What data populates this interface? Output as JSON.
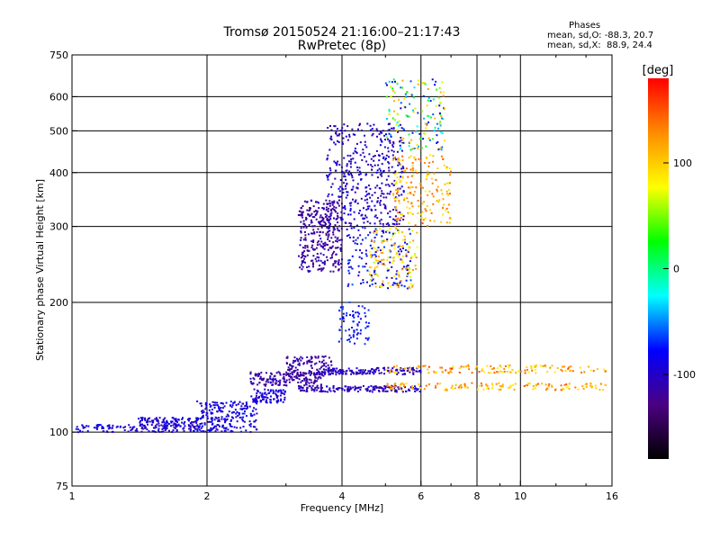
{
  "header": {
    "title_line1": "Tromsø 20150524 21:16:00–21:17:43",
    "title_line2": "RwPretec (8p)"
  },
  "stats": {
    "heading": "Phases",
    "line_o": "mean, sd,O: -88.3, 20.7",
    "line_x": "mean, sd,X:  88.9, 24.4"
  },
  "chart_data": {
    "type": "scatter",
    "xlabel": "Frequency [MHz]",
    "ylabel": "Stationary phase Virtual Height [km]",
    "xscale": "log",
    "yscale": "log",
    "xlim": [
      1,
      16
    ],
    "ylim": [
      75,
      750
    ],
    "xticks": [
      1,
      2,
      4,
      6,
      8,
      10,
      16
    ],
    "xtick_labels": [
      "1",
      "2",
      "4",
      "6",
      "8",
      "10",
      "16"
    ],
    "yticks": [
      75,
      100,
      200,
      300,
      400,
      500,
      600,
      750
    ],
    "ytick_labels": [
      "75",
      "100",
      "200",
      "300",
      "400",
      "500",
      "600",
      "750"
    ],
    "grid": true,
    "colorbar": {
      "label": "[deg]",
      "min": -180,
      "max": 180,
      "ticks": [
        100,
        0,
        -100
      ],
      "tick_labels": [
        "100",
        "0",
        "-100"
      ],
      "colors": [
        "#000000",
        "#4b0082",
        "#0000ff",
        "#00ffff",
        "#00ff00",
        "#ffff00",
        "#ff8c00",
        "#ff0000"
      ]
    },
    "trace_groups": [
      {
        "f_range": [
          1.02,
          1.4
        ],
        "h_range": [
          100,
          104
        ],
        "phase_range": [
          -110,
          -70
        ],
        "count": 60
      },
      {
        "f_range": [
          1.4,
          1.95
        ],
        "h_range": [
          100,
          108
        ],
        "phase_range": [
          -115,
          -75
        ],
        "count": 180
      },
      {
        "f_range": [
          1.9,
          2.6
        ],
        "h_range": [
          100,
          118
        ],
        "phase_range": [
          -110,
          -70
        ],
        "count": 220
      },
      {
        "f_range": [
          2.5,
          3.0
        ],
        "h_range": [
          117,
          126
        ],
        "phase_range": [
          -110,
          -80
        ],
        "count": 90
      },
      {
        "f_range": [
          2.5,
          3.6
        ],
        "h_range": [
          128,
          138
        ],
        "phase_range": [
          -130,
          -100
        ],
        "count": 160
      },
      {
        "f_range": [
          3.0,
          3.8
        ],
        "h_range": [
          135,
          150
        ],
        "phase_range": [
          -130,
          -100
        ],
        "count": 110
      },
      {
        "f_range": [
          3.2,
          6.0
        ],
        "h_range": [
          124,
          128
        ],
        "phase_range": [
          -120,
          -90
        ],
        "count": 160
      },
      {
        "f_range": [
          3.5,
          6.0
        ],
        "h_range": [
          136,
          141
        ],
        "phase_range": [
          -115,
          -90
        ],
        "count": 150
      },
      {
        "f_range": [
          5.0,
          15.5
        ],
        "h_range": [
          125,
          130
        ],
        "phase_range": [
          80,
          150
        ],
        "count": 130
      },
      {
        "f_range": [
          5.0,
          15.5
        ],
        "h_range": [
          137,
          143
        ],
        "phase_range": [
          80,
          160
        ],
        "count": 130
      },
      {
        "f_range": [
          3.9,
          4.6
        ],
        "h_range": [
          160,
          200
        ],
        "phase_range": [
          -100,
          -60
        ],
        "count": 70
      },
      {
        "f_range": [
          3.2,
          4.0
        ],
        "h_range": [
          235,
          345
        ],
        "phase_range": [
          -130,
          -100
        ],
        "count": 320
      },
      {
        "f_range": [
          3.7,
          5.5
        ],
        "h_range": [
          300,
          520
        ],
        "phase_range": [
          -120,
          -80
        ],
        "count": 420
      },
      {
        "f_range": [
          4.1,
          5.7
        ],
        "h_range": [
          215,
          300
        ],
        "phase_range": [
          -110,
          -60
        ],
        "count": 150
      },
      {
        "f_range": [
          4.6,
          5.9
        ],
        "h_range": [
          215,
          300
        ],
        "phase_range": [
          60,
          130
        ],
        "count": 120
      },
      {
        "f_range": [
          5.2,
          7.0
        ],
        "h_range": [
          300,
          440
        ],
        "phase_range": [
          80,
          150
        ],
        "count": 180
      },
      {
        "f_range": [
          5.0,
          6.8
        ],
        "h_range": [
          450,
          660
        ],
        "phase_range": [
          -100,
          120
        ],
        "count": 160
      }
    ]
  }
}
